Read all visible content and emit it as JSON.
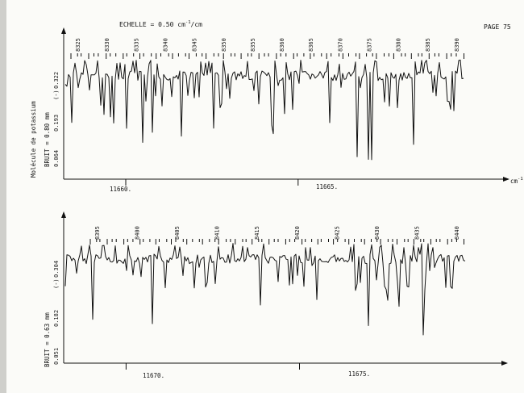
{
  "page": {
    "scale_label": "ECHELLE = 0.50 cm",
    "scale_sup": "-1",
    "scale_suffix": "/cm",
    "page_number": "PAGE 75",
    "molecule_label": "Molécule de potassium",
    "unit": "cm",
    "unit_sup": "-1"
  },
  "chart_data": [
    {
      "type": "line",
      "noise_label": "BRUIT = 0.80 mm",
      "y_unit_label": "(-)",
      "y_tick_labels": [
        "0.064",
        "0.193",
        "0.322"
      ],
      "x_tick_labels": [
        "11660.",
        "11665."
      ],
      "line_labels": [
        "8325",
        "8330",
        "8335",
        "8340",
        "8345",
        "8350",
        "8355",
        "8360",
        "8365",
        "8370",
        "8375",
        "8380",
        "8385",
        "8390"
      ],
      "x_range": [
        11658.2,
        11669.8
      ],
      "major_ticks": [
        11660,
        11665
      ],
      "y_range": [
        0.0,
        0.4
      ]
    },
    {
      "type": "line",
      "noise_label": "BRUIT = 0.63 mm",
      "y_unit_label": "(-)",
      "y_tick_labels": [
        "0.051",
        "0.182",
        "0.304"
      ],
      "x_tick_labels": [
        "11670.",
        "11675."
      ],
      "line_labels": [
        "8395",
        "8400",
        "8405",
        "8410",
        "8415",
        "8420",
        "8425",
        "8430",
        "8435",
        "8440"
      ],
      "x_range": [
        11668.2,
        11679.8
      ],
      "major_ticks": [
        11670,
        11675
      ],
      "y_range": [
        0.0,
        0.4
      ]
    }
  ]
}
